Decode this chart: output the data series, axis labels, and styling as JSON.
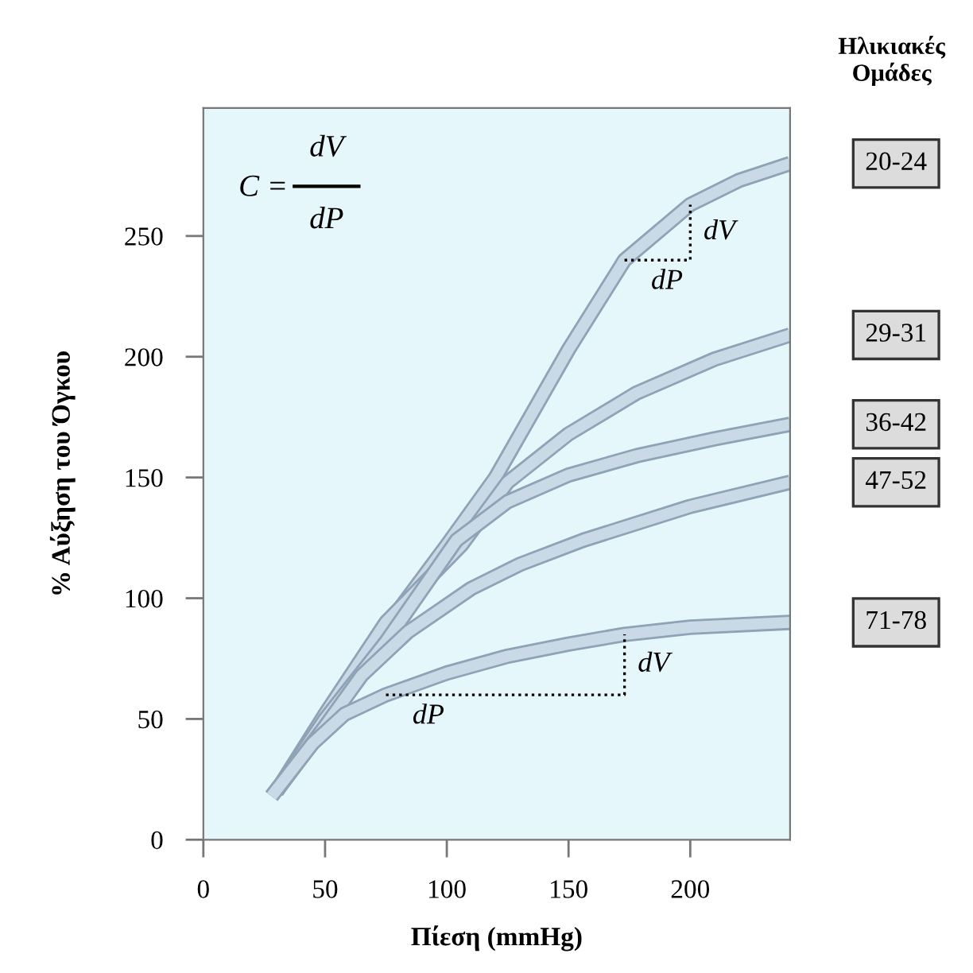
{
  "chart_data": {
    "type": "line",
    "xlabel": "Πίεση (mmHg)",
    "ylabel": "% Αύξηση του Όγκου",
    "legend_title": "Ηλικιακές Ομάδες",
    "xlim": [
      0,
      241
    ],
    "xticks": [
      0,
      50,
      100,
      150,
      200
    ],
    "ylim": [
      0,
      303
    ],
    "yticks": [
      0,
      50,
      100,
      150,
      200,
      250
    ],
    "series": [
      {
        "name": "20-24",
        "color": "#c9d9e6",
        "x": [
          28,
          50,
          75,
          100,
          120,
          150,
          173,
          200,
          220,
          241
        ],
        "values": [
          18,
          47,
          88,
          122,
          150,
          203,
          240,
          263,
          273,
          280
        ]
      },
      {
        "name": "29-31",
        "color": "#c9d9e6",
        "x": [
          30,
          50,
          75,
          106,
          125,
          150,
          178,
          210,
          241
        ],
        "values": [
          20,
          52,
          90,
          122,
          148,
          168,
          185,
          199,
          209
        ]
      },
      {
        "name": "36-42",
        "color": "#c9d9e6",
        "x": [
          30,
          50,
          75,
          104,
          125,
          150,
          178,
          210,
          241
        ],
        "values": [
          20,
          50,
          82,
          124,
          140,
          151,
          159,
          166,
          172
        ]
      },
      {
        "name": "47-52",
        "color": "#c9d9e6",
        "x": [
          30,
          50,
          65,
          84,
          110,
          130,
          156,
          200,
          241
        ],
        "values": [
          20,
          47,
          68,
          86,
          104,
          114,
          124,
          138,
          148
        ]
      },
      {
        "name": "71-78",
        "color": "#c9d9e6",
        "x": [
          28,
          45,
          58,
          75,
          100,
          125,
          150,
          173,
          200,
          241
        ],
        "values": [
          18,
          40,
          52,
          60,
          69,
          76,
          81,
          85,
          88,
          90
        ]
      }
    ],
    "annotations": [
      "C =",
      "dV",
      "dP",
      {
        "text": "dP",
        "x": 173,
        "y": 240
      },
      {
        "text": "dV",
        "x": 200,
        "y": 263
      },
      {
        "text": "dP",
        "x": 75,
        "y": 60
      },
      {
        "text": "dV",
        "x": 173,
        "y": 85
      }
    ]
  }
}
